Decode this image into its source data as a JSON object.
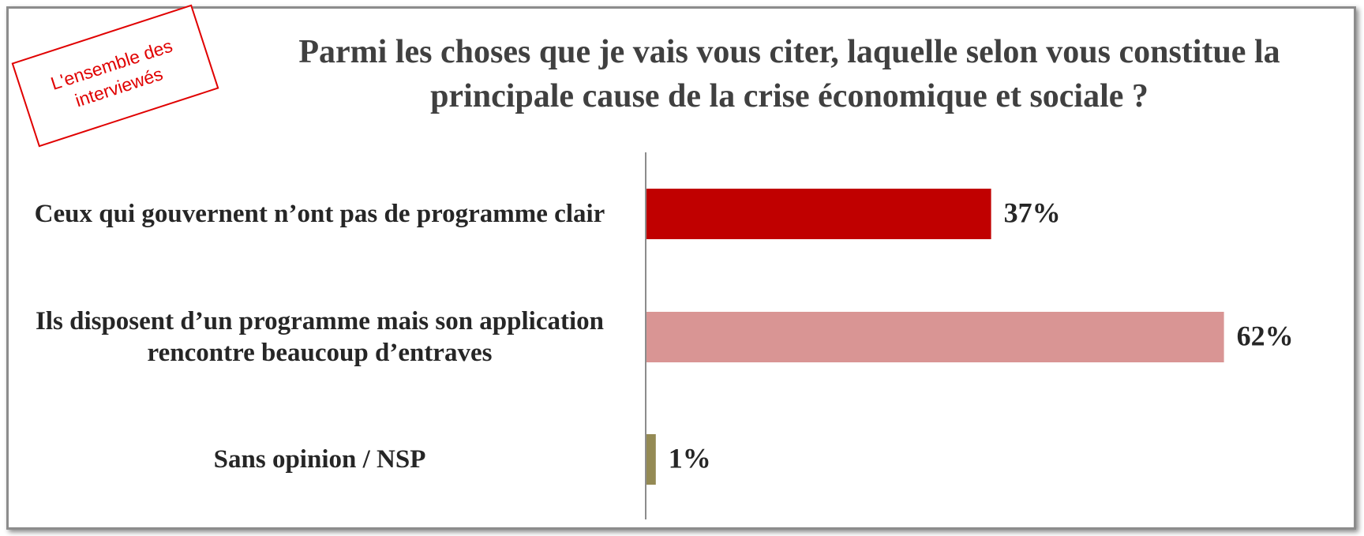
{
  "stamp": "L'ensemble des interviewés",
  "chart_data": {
    "type": "bar",
    "orientation": "horizontal",
    "title": "Parmi les choses que je vais vous citer, laquelle selon vous constitue la principale cause de la crise économique et sociale ?",
    "categories": [
      "Ceux qui gouvernent  n’ont pas de programme clair",
      "Ils disposent d’un programme mais son application rencontre beaucoup d’entraves",
      "Sans opinion / NSP"
    ],
    "values": [
      37,
      62,
      1
    ],
    "value_labels": [
      "37%",
      "62%",
      "1%"
    ],
    "colors": [
      "#c00000",
      "#d99594",
      "#948a54"
    ]
  }
}
